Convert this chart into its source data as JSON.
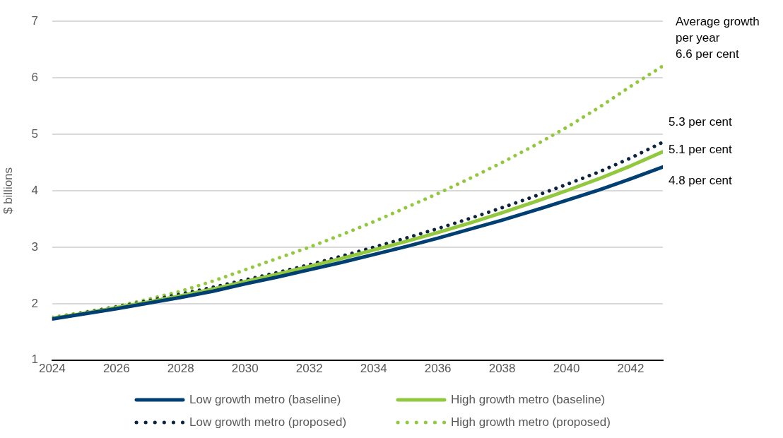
{
  "chart_data": {
    "type": "line",
    "ylabel": "$ billions",
    "x": [
      2024,
      2025,
      2026,
      2027,
      2028,
      2029,
      2030,
      2031,
      2032,
      2033,
      2034,
      2035,
      2036,
      2037,
      2038,
      2039,
      2040,
      2041,
      2042,
      2043
    ],
    "series": [
      {
        "name": "Low growth metro (baseline)",
        "color": "#003f72",
        "values": [
          1.73,
          1.82,
          1.91,
          2.01,
          2.11,
          2.22,
          2.35,
          2.47,
          2.6,
          2.73,
          2.87,
          3.01,
          3.16,
          3.32,
          3.48,
          3.65,
          3.83,
          4.01,
          4.21,
          4.42
        ]
      },
      {
        "name": "High growth metro (baseline)",
        "color": "#92c83e",
        "values": [
          1.74,
          1.83,
          1.93,
          2.03,
          2.14,
          2.26,
          2.39,
          2.52,
          2.66,
          2.8,
          2.95,
          3.1,
          3.26,
          3.43,
          3.61,
          3.8,
          4.0,
          4.21,
          4.44,
          4.69
        ]
      },
      {
        "name": "Low growth metro (proposed)",
        "color": "#0c2340",
        "line_style": "dotted",
        "values": [
          1.74,
          1.84,
          1.94,
          2.05,
          2.17,
          2.29,
          2.42,
          2.55,
          2.69,
          2.84,
          3.0,
          3.16,
          3.33,
          3.51,
          3.7,
          3.9,
          4.11,
          4.33,
          4.58,
          4.86
        ]
      },
      {
        "name": "High growth metro (proposed)",
        "color": "#92c83e",
        "line_style": "dotted",
        "values": [
          1.76,
          1.85,
          1.95,
          2.08,
          2.22,
          2.4,
          2.6,
          2.8,
          3.0,
          3.22,
          3.45,
          3.7,
          3.95,
          4.22,
          4.5,
          4.8,
          5.12,
          5.47,
          5.85,
          6.21
        ]
      }
    ],
    "xlim": [
      2024,
      2043
    ],
    "xticks": [
      2024,
      2026,
      2028,
      2030,
      2032,
      2034,
      2036,
      2038,
      2040,
      2042
    ],
    "ylim": [
      1,
      7
    ],
    "yticks": [
      1,
      2,
      3,
      4,
      5,
      6,
      7
    ],
    "grid": "y",
    "legend": "bottom",
    "marker": "none",
    "annotations": [
      "Average growth per year",
      "6.6 per cent",
      "5.3 per cent",
      "5.1 per cent",
      "4.8 per cent"
    ]
  }
}
